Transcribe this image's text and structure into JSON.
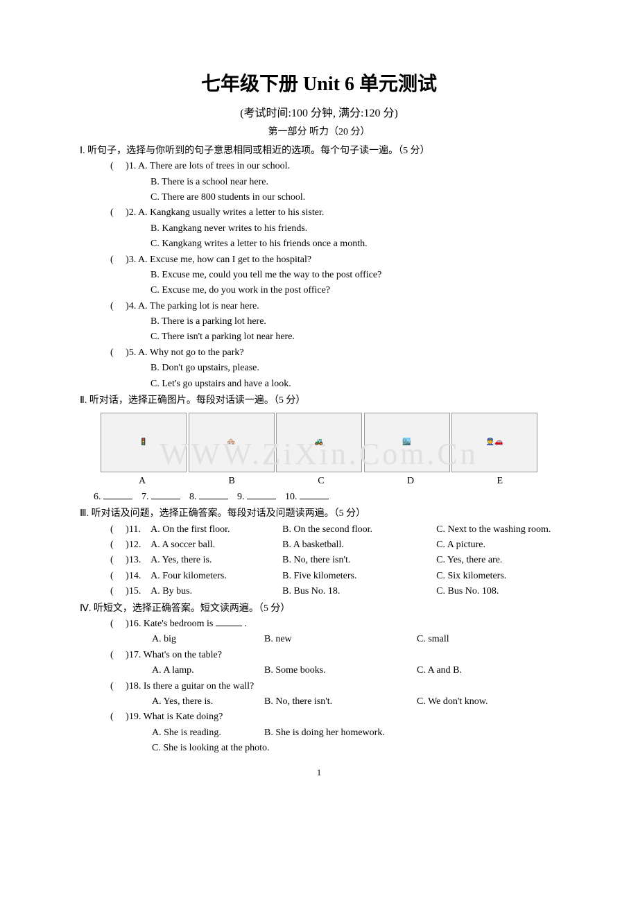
{
  "title": "七年级下册 Unit 6  单元测试",
  "subtitle": "(考试时间:100 分钟, 满分:120 分)",
  "part_heading": "第一部分    听力（20 分）",
  "watermark": "WWW.ZiXin.Com.Cn",
  "sec1": {
    "header": "Ⅰ. 听句子，选择与你听到的句子意思相同或相近的选项。每个句子读一遍。（5 分）",
    "q1a": ")1. A. There are lots of trees in our school.",
    "q1b": "B. There is a school near here.",
    "q1c": "C. There are 800 students in our school.",
    "q2a": ")2. A. Kangkang usually writes a letter to his sister.",
    "q2b": "B. Kangkang never writes to his friends.",
    "q2c": "C. Kangkang writes a letter to his friends once a month.",
    "q3a": ")3. A. Excuse me, how can I get to the hospital?",
    "q3b": "B. Excuse me, could you tell me the way to the post office?",
    "q3c": "C. Excuse me, do you work in the post office?",
    "q4a": ")4. A. The parking lot is near here.",
    "q4b": "B. There is a parking lot here.",
    "q4c": "C. There isn't a parking lot near here.",
    "q5a": ")5. A. Why not go to the park?",
    "q5b": "B. Don't go upstairs, please.",
    "q5c": "C. Let's go upstairs and have a look."
  },
  "sec2": {
    "header": "Ⅱ. 听对话，选择正确图片。每段对话读一遍。（5 分）",
    "labels": {
      "a": "A",
      "b": "B",
      "c": "C",
      "d": "D",
      "e": "E"
    },
    "blanks": {
      "n6": "6.",
      "n7": "7.",
      "n8": "8.",
      "n9": "9.",
      "n10": "10."
    }
  },
  "sec3": {
    "header": "Ⅲ. 听对话及问题，选择正确答案。每段对话及问题读两遍。（5 分）",
    "q11": {
      "p": ")11.",
      "a": "A. On the first floor.",
      "b": "B. On the second floor.",
      "c": "C. Next to the washing room."
    },
    "q12": {
      "p": ")12.",
      "a": "A. A soccer ball.",
      "b": "B. A basketball.",
      "c": "C. A picture."
    },
    "q13": {
      "p": ")13.",
      "a": "A. Yes, there is.",
      "b": "B. No, there isn't.",
      "c": "C. Yes, there are."
    },
    "q14": {
      "p": ")14.",
      "a": "A. Four kilometers.",
      "b": "B. Five kilometers.",
      "c": "C. Six kilometers."
    },
    "q15": {
      "p": ")15.",
      "a": "A. By bus.",
      "b": "B. Bus No. 18.",
      "c": "C. Bus No. 108."
    }
  },
  "sec4": {
    "header": "Ⅳ. 听短文，选择正确答案。短文读两遍。（5 分）",
    "q16": {
      "p": ")16.",
      "stem": "Kate's bedroom is ",
      "stem2": " .",
      "a": "A. big",
      "b": "B. new",
      "c": "C. small"
    },
    "q17": {
      "p": ")17.",
      "stem": "What's on the table?",
      "a": "A. A lamp.",
      "b": "B. Some books.",
      "c": "C. A and B."
    },
    "q18": {
      "p": ")18.",
      "stem": "Is there a guitar on the wall?",
      "a": "A. Yes, there is.",
      "b": "B. No, there isn't.",
      "c": "C. We don't know."
    },
    "q19": {
      "p": ")19.",
      "stem": "What is Kate doing?",
      "a": "A. She is reading.",
      "b": "B. She is doing her homework.",
      "c": "C. She is looking at the photo."
    }
  },
  "bracket": "(",
  "page_num": "1",
  "colors": {
    "text": "#000000",
    "bg": "#ffffff",
    "watermark": "#e0e0e0"
  },
  "fonts": {
    "body": "Times New Roman",
    "cjk": "SimSun",
    "title_pt": 28,
    "body_pt": 14
  }
}
